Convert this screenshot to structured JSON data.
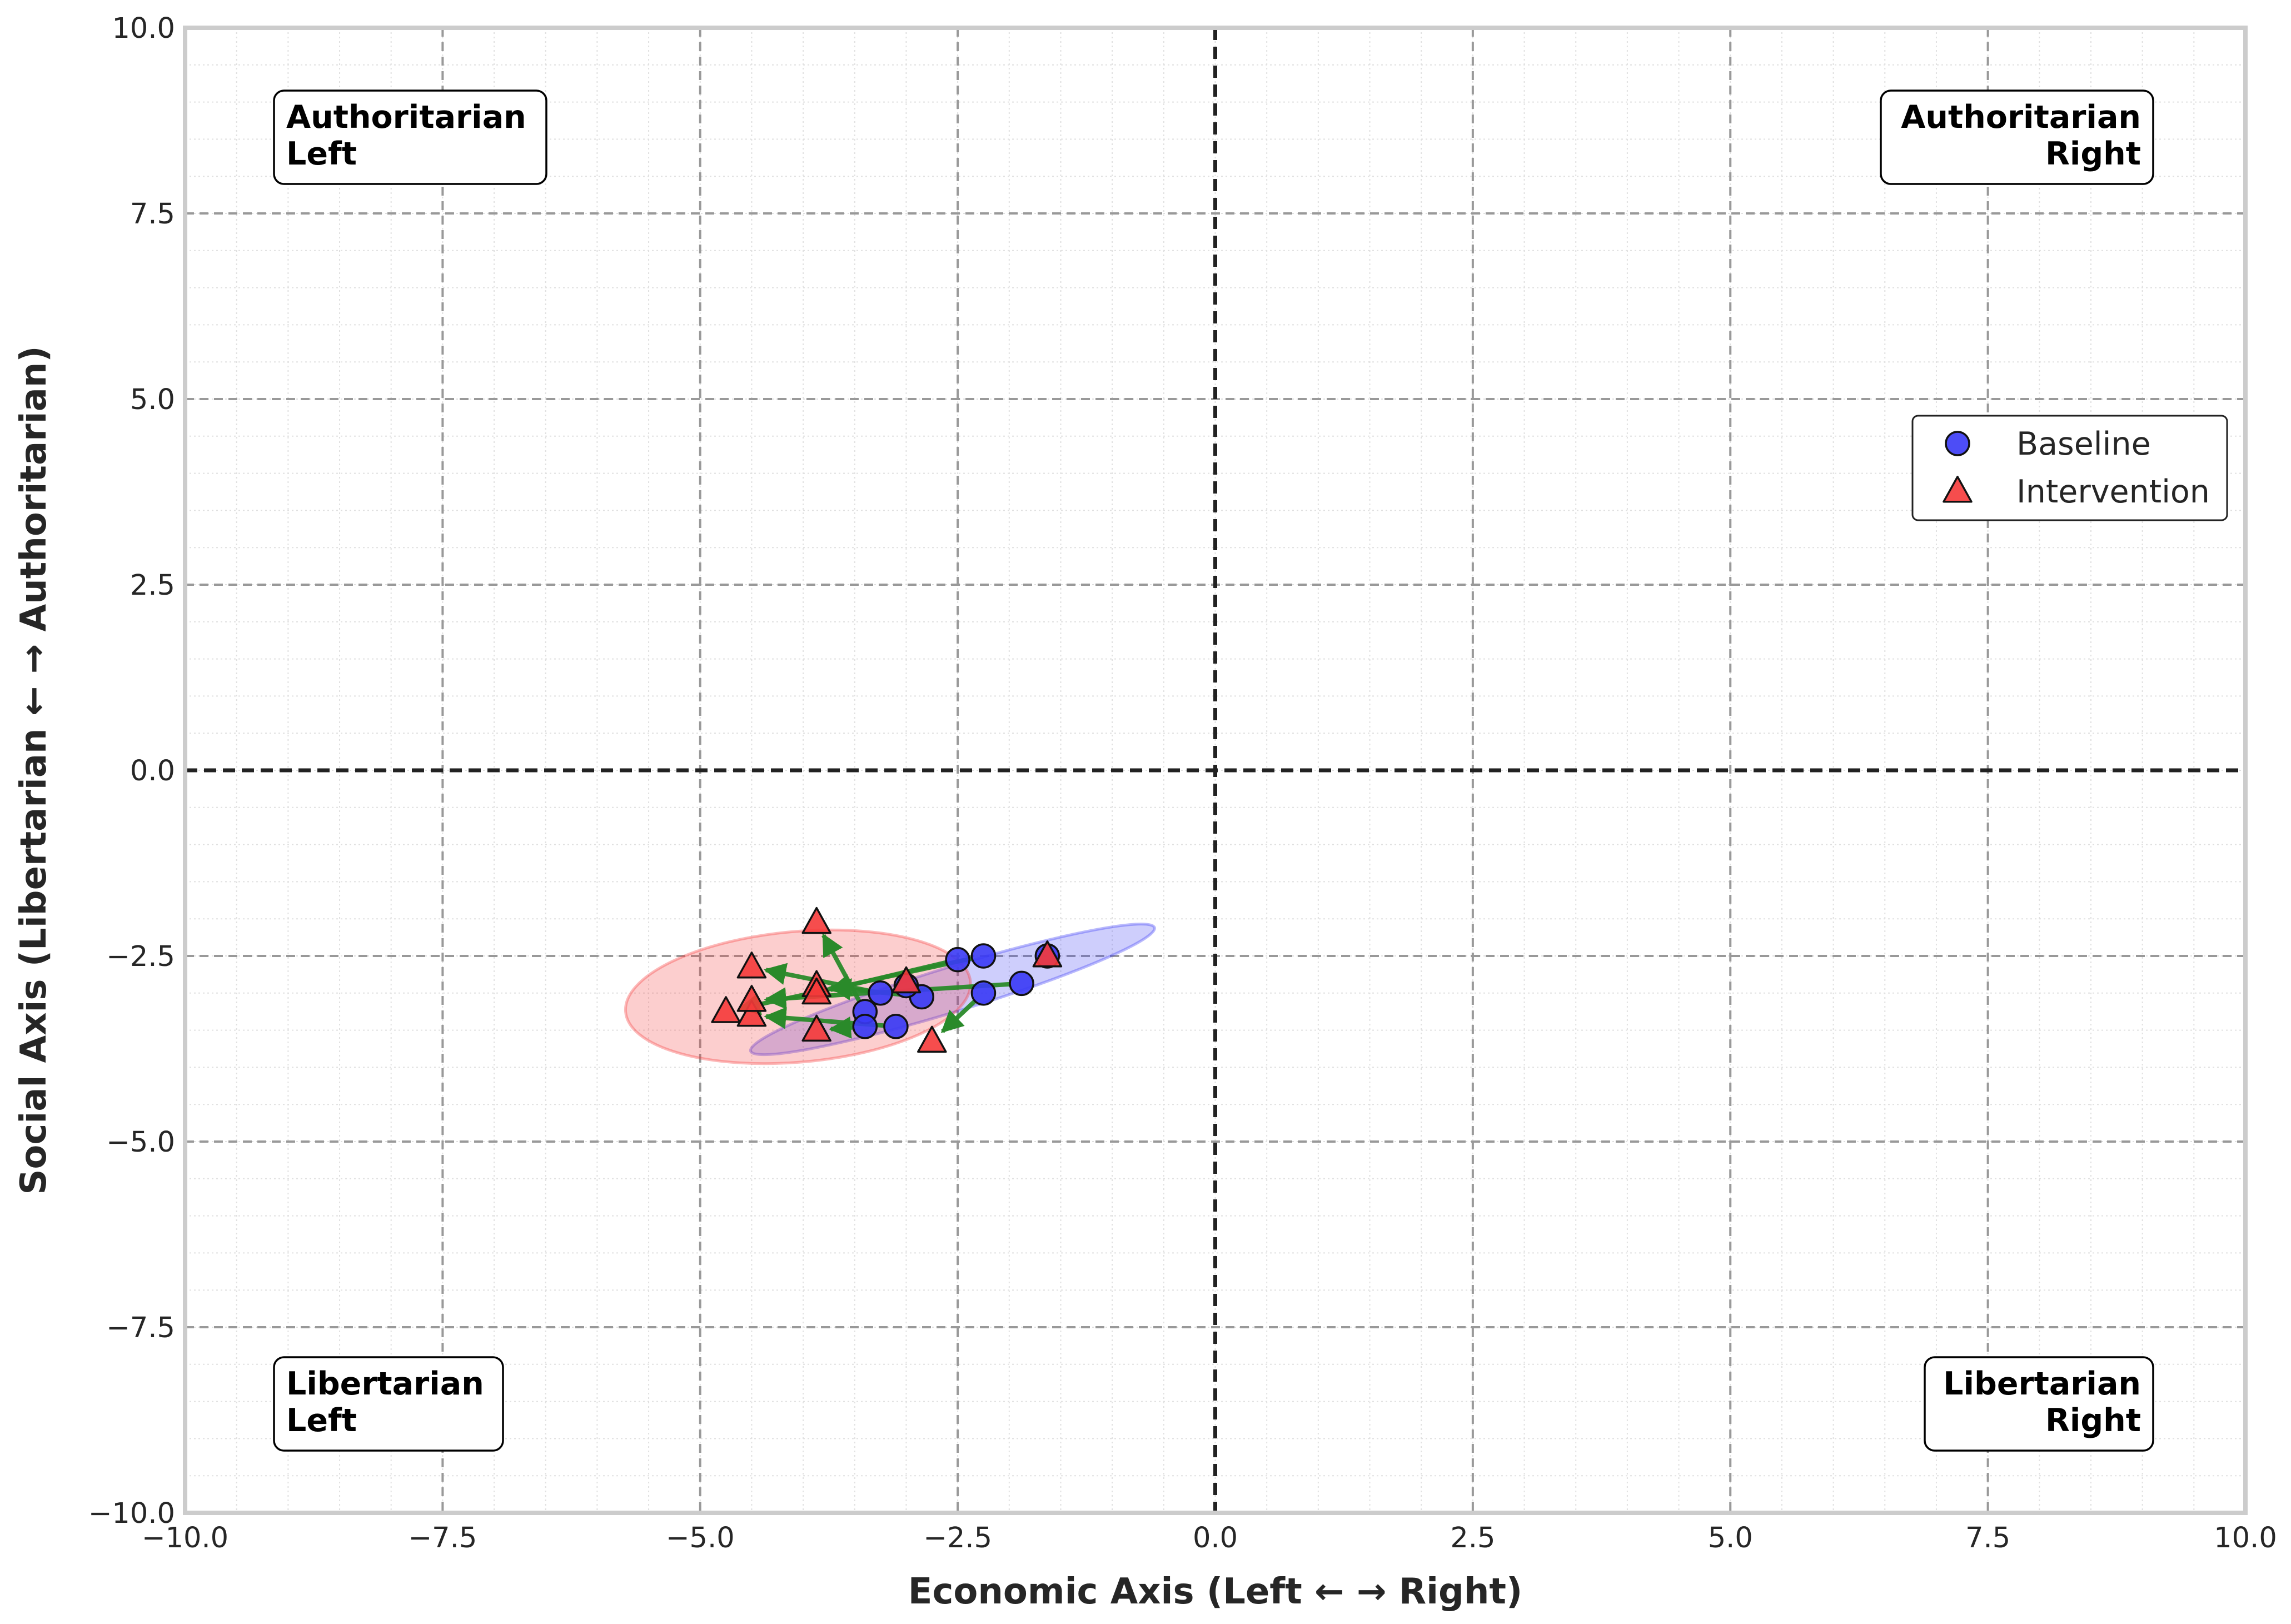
{
  "chart_data": {
    "type": "scatter",
    "xlabel": "Economic Axis (Left ← → Right)",
    "ylabel": "Social Axis (Libertarian ← → Authoritarian)",
    "xlim": [
      -10,
      10
    ],
    "ylim": [
      -10,
      10
    ],
    "x_ticks": [
      -10,
      -7.5,
      -5,
      -2.5,
      0,
      2.5,
      5,
      7.5,
      10
    ],
    "y_ticks": [
      -10,
      -7.5,
      -5,
      -2.5,
      0,
      2.5,
      5,
      7.5,
      10
    ],
    "x_tick_labels": [
      "−10.0",
      "−7.5",
      "−5.0",
      "−2.5",
      "0.0",
      "2.5",
      "5.0",
      "7.5",
      "10.0"
    ],
    "y_tick_labels": [
      "−10.0",
      "−7.5",
      "−5.0",
      "−2.5",
      "0.0",
      "2.5",
      "5.0",
      "7.5",
      "10.0"
    ],
    "grid": true,
    "minor_grid": true,
    "legend_position": "right",
    "quadrant_labels": [
      {
        "id": "auth-left",
        "lines": [
          "Authoritarian",
          "Left"
        ],
        "position": "top-left"
      },
      {
        "id": "auth-right",
        "lines": [
          "Authoritarian",
          "Right"
        ],
        "position": "top-right"
      },
      {
        "id": "lib-left",
        "lines": [
          "Libertarian",
          "Left"
        ],
        "position": "bottom-left"
      },
      {
        "id": "lib-right",
        "lines": [
          "Libertarian",
          "Right"
        ],
        "position": "bottom-right"
      }
    ],
    "series": [
      {
        "name": "Baseline",
        "marker": "circle",
        "color": "#3a3af5",
        "points": [
          [
            -3.25,
            -3.0
          ],
          [
            -2.85,
            -3.05
          ],
          [
            -3.4,
            -3.25
          ],
          [
            -3.4,
            -3.45
          ],
          [
            -3.1,
            -3.45
          ],
          [
            -2.5,
            -2.55
          ],
          [
            -2.25,
            -2.5
          ],
          [
            -2.25,
            -3.0
          ],
          [
            -1.88,
            -2.87
          ],
          [
            -1.63,
            -2.5
          ],
          [
            -3.0,
            -2.9
          ]
        ],
        "ellipse": {
          "cx": -2.55,
          "cy": -2.95,
          "rx": 2.05,
          "ry": 0.3,
          "angle_deg": 17
        }
      },
      {
        "name": "Intervention",
        "marker": "triangle",
        "color": "#f53a3a",
        "points": [
          [
            -4.75,
            -3.25
          ],
          [
            -4.5,
            -3.3
          ],
          [
            -4.5,
            -3.1
          ],
          [
            -4.5,
            -2.65
          ],
          [
            -3.87,
            -2.05
          ],
          [
            -3.87,
            -2.9
          ],
          [
            -3.87,
            -3.0
          ],
          [
            -3.87,
            -3.5
          ],
          [
            -3.0,
            -2.85
          ],
          [
            -2.75,
            -3.65
          ],
          [
            -1.63,
            -2.5
          ]
        ],
        "ellipse": {
          "cx": -4.05,
          "cy": -3.05,
          "rx": 1.68,
          "ry": 0.88,
          "angle_deg": 5
        }
      }
    ],
    "shifts": [
      {
        "from": [
          -3.25,
          -3.0
        ],
        "to": [
          -4.5,
          -2.65
        ]
      },
      {
        "from": [
          -2.85,
          -3.05
        ],
        "to": [
          -3.87,
          -2.9
        ]
      },
      {
        "from": [
          -3.4,
          -3.25
        ],
        "to": [
          -3.87,
          -2.05
        ]
      },
      {
        "from": [
          -3.4,
          -3.45
        ],
        "to": [
          -3.87,
          -3.5
        ]
      },
      {
        "from": [
          -3.1,
          -3.45
        ],
        "to": [
          -4.5,
          -3.3
        ]
      },
      {
        "from": [
          -2.5,
          -2.55
        ],
        "to": [
          -3.87,
          -3.0
        ]
      },
      {
        "from": [
          -2.25,
          -2.5
        ],
        "to": [
          -4.75,
          -3.25
        ]
      },
      {
        "from": [
          -2.25,
          -3.0
        ],
        "to": [
          -2.75,
          -3.65
        ]
      },
      {
        "from": [
          -1.88,
          -2.87
        ],
        "to": [
          -4.5,
          -3.1
        ]
      },
      {
        "from": [
          -3.0,
          -2.9
        ],
        "to": [
          -3.0,
          -2.85
        ]
      }
    ],
    "colors": {
      "shift_arrow": "#2a8a2a",
      "major_grid": "#999999",
      "minor_grid": "#e0e0e0",
      "zero_line": "#222222",
      "frame": "#cccccc"
    }
  }
}
